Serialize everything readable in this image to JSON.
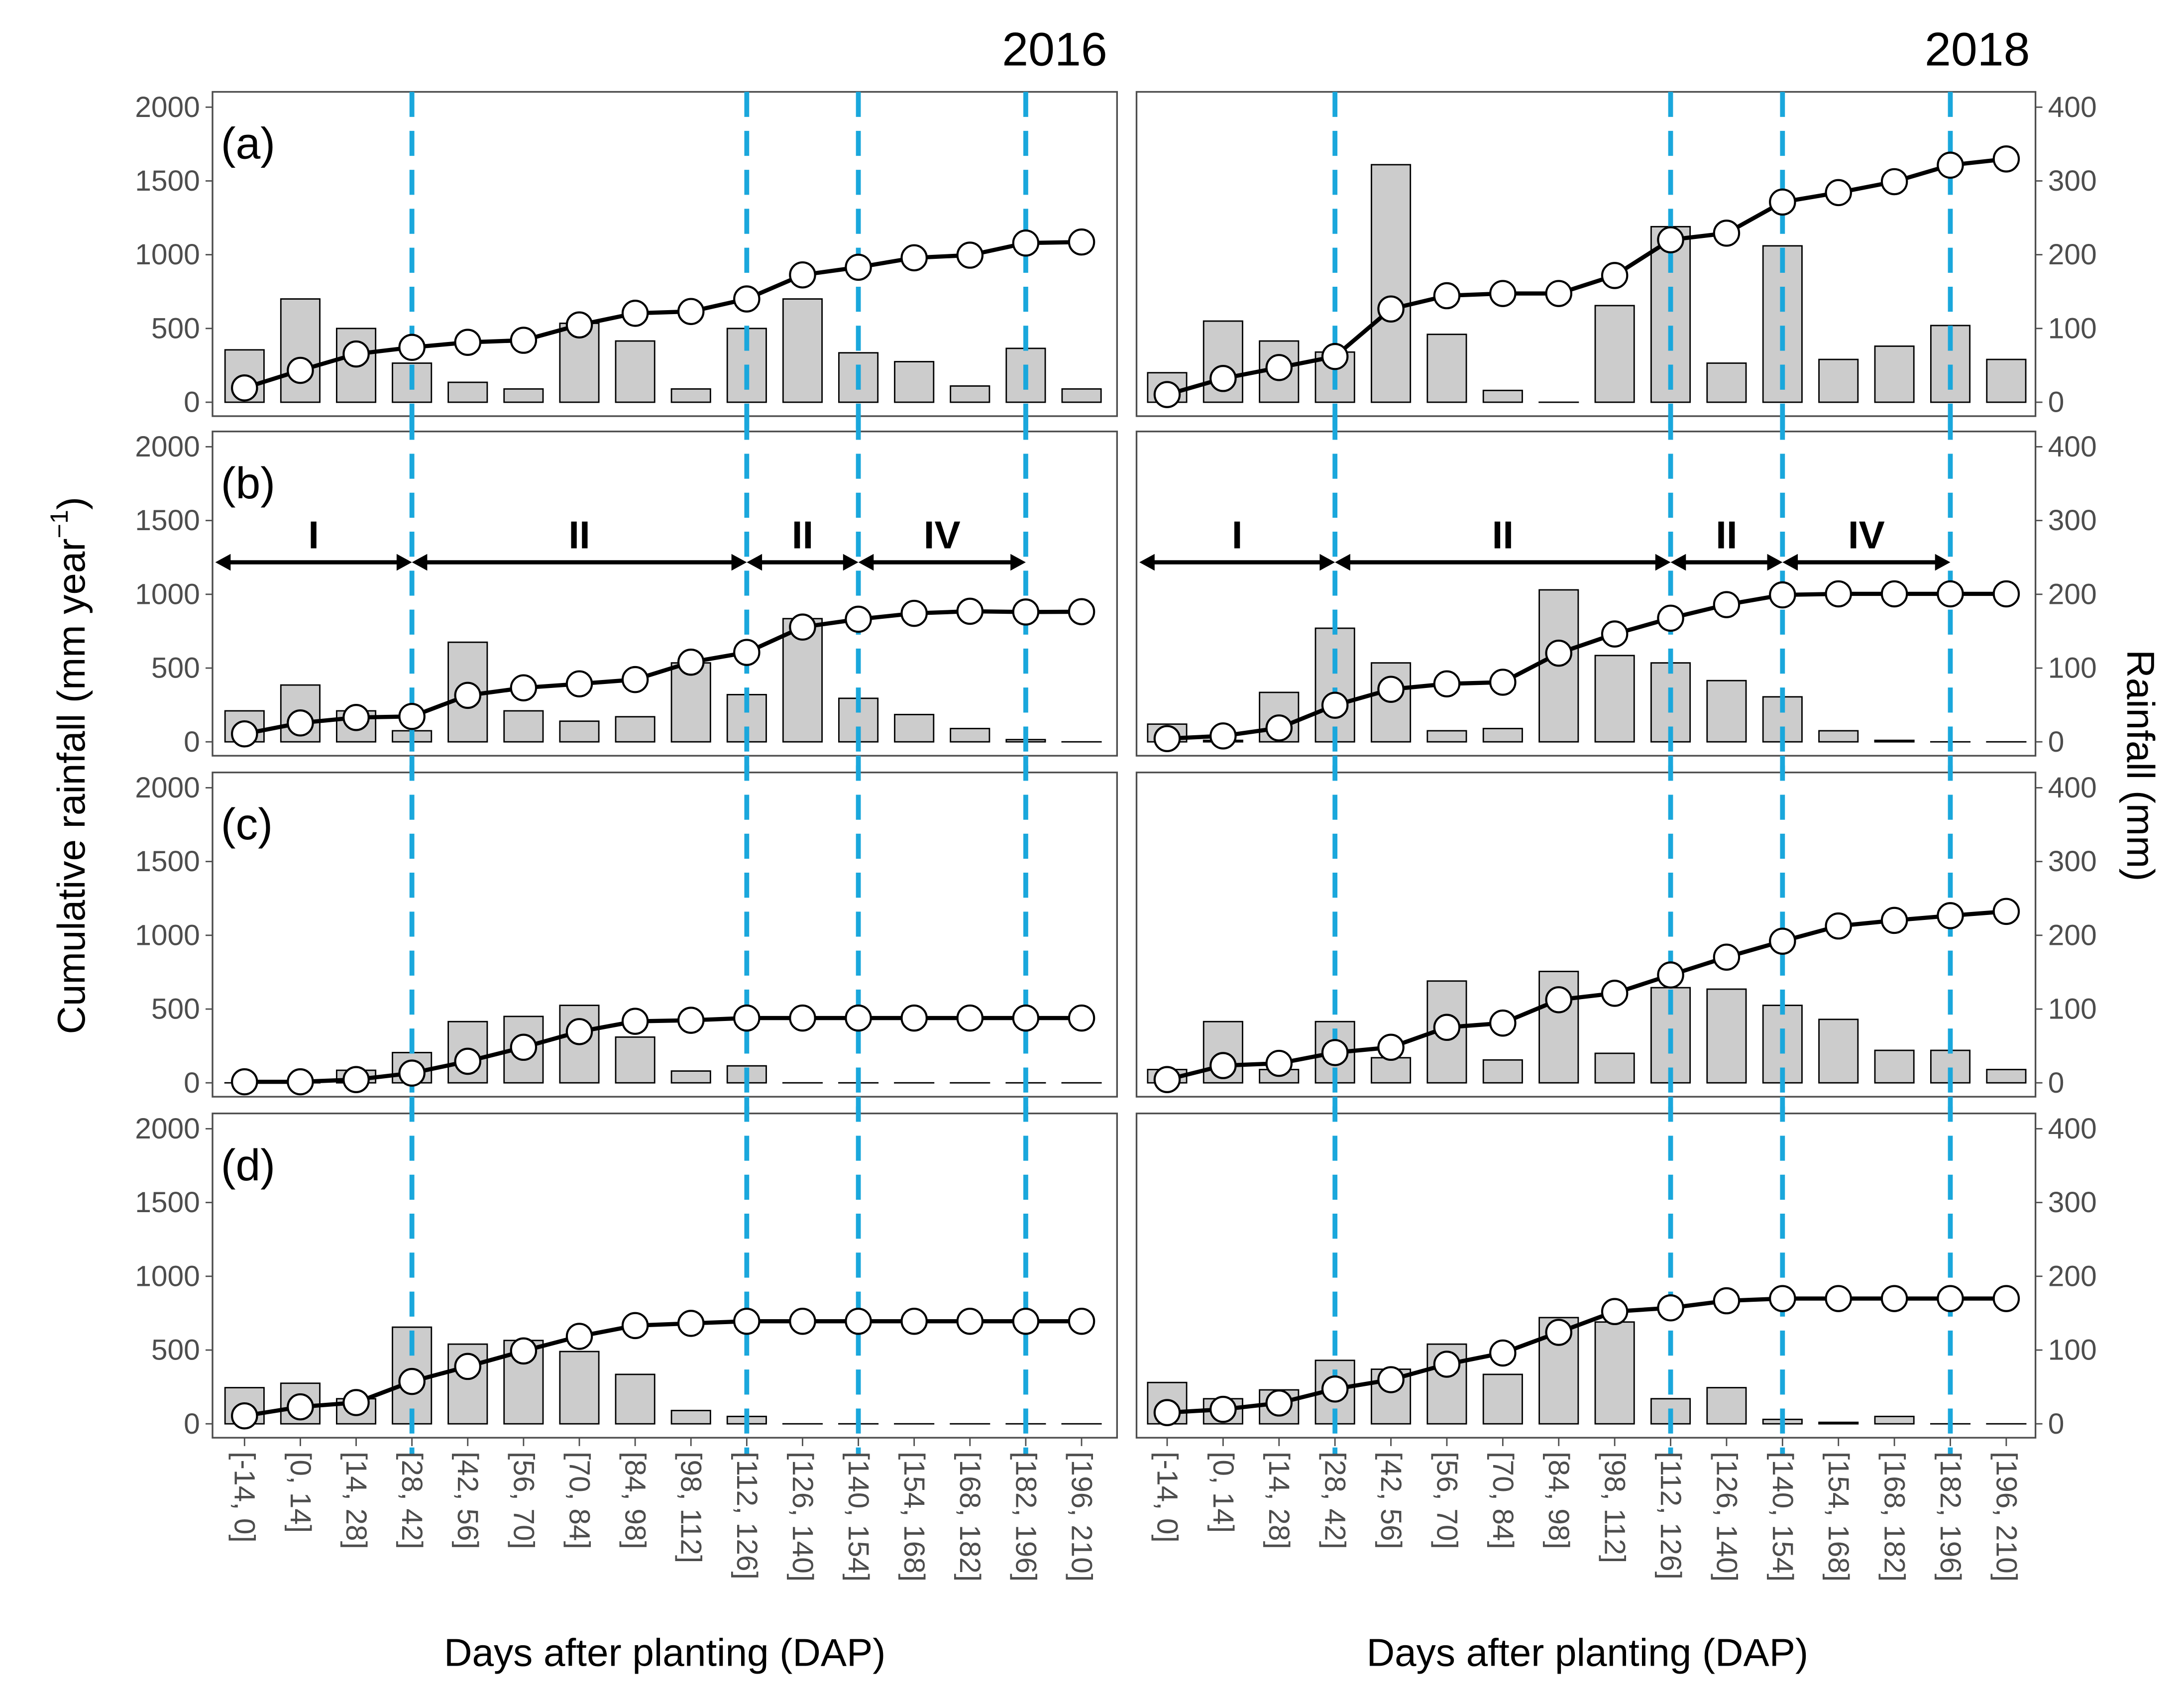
{
  "colors": {
    "bar_fill": "#cccccc",
    "bar_stroke": "#000000",
    "line": "#000000",
    "marker_fill": "#ffffff",
    "stage_line": "#1aa7dc",
    "frame": "#4d4d4d"
  },
  "chart_data": {
    "type": "bar+line",
    "years": [
      "2016",
      "2018"
    ],
    "xlabel": "Days after planting (DAP)",
    "ylabel_left": "Cumulative rainfall (mm year",
    "ylabel_left_sup": "−1",
    "ylabel_left_close": ")",
    "ylabel_right": "Rainfall (mm)",
    "ylim_left": [
      0,
      2000
    ],
    "ylim_right": [
      0,
      400
    ],
    "yticks_left": [
      "0",
      "500",
      "1000",
      "1500",
      "2000"
    ],
    "yticks_right": [
      "0",
      "100",
      "200",
      "300",
      "400"
    ],
    "categories": [
      "[-14, 0]",
      "[0, 14]",
      "[14, 28]",
      "[28, 42]",
      "[42, 56]",
      "[56, 70]",
      "[70, 84]",
      "[84, 98]",
      "[98, 112]",
      "[112, 126]",
      "[126, 140]",
      "[140, 154]",
      "[154, 168]",
      "[168, 182]",
      "[182, 196]",
      "[196, 210]"
    ],
    "stage_lines_at_category_index": [
      3,
      9,
      11,
      14
    ],
    "phases": [
      {
        "label": "I",
        "from": -0.6,
        "to": 3
      },
      {
        "label": "II",
        "from": 3,
        "to": 9
      },
      {
        "label": "II",
        "from": 9,
        "to": 11
      },
      {
        "label": "IV",
        "from": 11,
        "to": 14
      }
    ],
    "phases_panel": "b",
    "panels": [
      {
        "label": "(a)",
        "2016": {
          "rainfall": [
            71,
            140,
            100,
            53,
            27,
            18,
            107,
            83,
            18,
            100,
            140,
            67,
            55,
            22,
            73,
            18
          ],
          "cumulative": [
            97,
            216,
            327,
            372,
            406,
            420,
            524,
            603,
            615,
            700,
            863,
            915,
            979,
            997,
            1079,
            1086
          ]
        },
        "2018": {
          "rainfall": [
            40,
            110,
            83,
            68,
            322,
            92,
            16,
            0,
            131,
            238,
            53,
            212,
            58,
            76,
            104,
            58
          ],
          "cumulative": [
            52,
            161,
            235,
            310,
            632,
            722,
            737,
            737,
            859,
            1101,
            1146,
            1357,
            1421,
            1495,
            1607,
            1649
          ]
        }
      },
      {
        "label": "(b)",
        "2016": {
          "rainfall": [
            42,
            77,
            42,
            15,
            135,
            42,
            28,
            34,
            107,
            64,
            167,
            59,
            37,
            18,
            3,
            0
          ],
          "cumulative": [
            54,
            128,
            165,
            172,
            315,
            366,
            393,
            422,
            540,
            606,
            778,
            831,
            871,
            885,
            880,
            882
          ]
        },
        "2018": {
          "rainfall": [
            24,
            2,
            67,
            154,
            107,
            15,
            18,
            206,
            117,
            107,
            83,
            61,
            15,
            2,
            0,
            0
          ],
          "cumulative": [
            22,
            40,
            94,
            248,
            356,
            393,
            404,
            601,
            731,
            838,
            930,
            996,
            1003,
            1003,
            1003,
            1003
          ]
        }
      },
      {
        "label": "(c)",
        "2016": {
          "rainfall": [
            0,
            0,
            17,
            41,
            83,
            90,
            105,
            62,
            16,
            23,
            0,
            0,
            0,
            0,
            0,
            0
          ],
          "cumulative": [
            7,
            7,
            22,
            66,
            146,
            241,
            347,
            417,
            424,
            439,
            439,
            439,
            439,
            439,
            439,
            439
          ]
        },
        "2018": {
          "rainfall": [
            18,
            83,
            18,
            83,
            34,
            138,
            31,
            151,
            40,
            129,
            127,
            105,
            86,
            44,
            44,
            18
          ],
          "cumulative": [
            22,
            117,
            132,
            205,
            241,
            376,
            405,
            563,
            607,
            731,
            852,
            960,
            1063,
            1101,
            1133,
            1162
          ]
        }
      },
      {
        "label": "(d)",
        "2016": {
          "rainfall": [
            49,
            55,
            34,
            131,
            108,
            113,
            98,
            67,
            18,
            10,
            0,
            0,
            0,
            0,
            0,
            0
          ],
          "cumulative": [
            54,
            115,
            144,
            287,
            389,
            494,
            593,
            666,
            681,
            695,
            695,
            695,
            695,
            695,
            695,
            695
          ]
        },
        "2018": {
          "rainfall": [
            56,
            34,
            46,
            86,
            74,
            108,
            67,
            144,
            138,
            34,
            49,
            6,
            2,
            10,
            0,
            0
          ],
          "cumulative": [
            76,
            98,
            141,
            236,
            299,
            404,
            480,
            620,
            761,
            786,
            834,
            849,
            849,
            849,
            849,
            849
          ]
        }
      }
    ]
  }
}
